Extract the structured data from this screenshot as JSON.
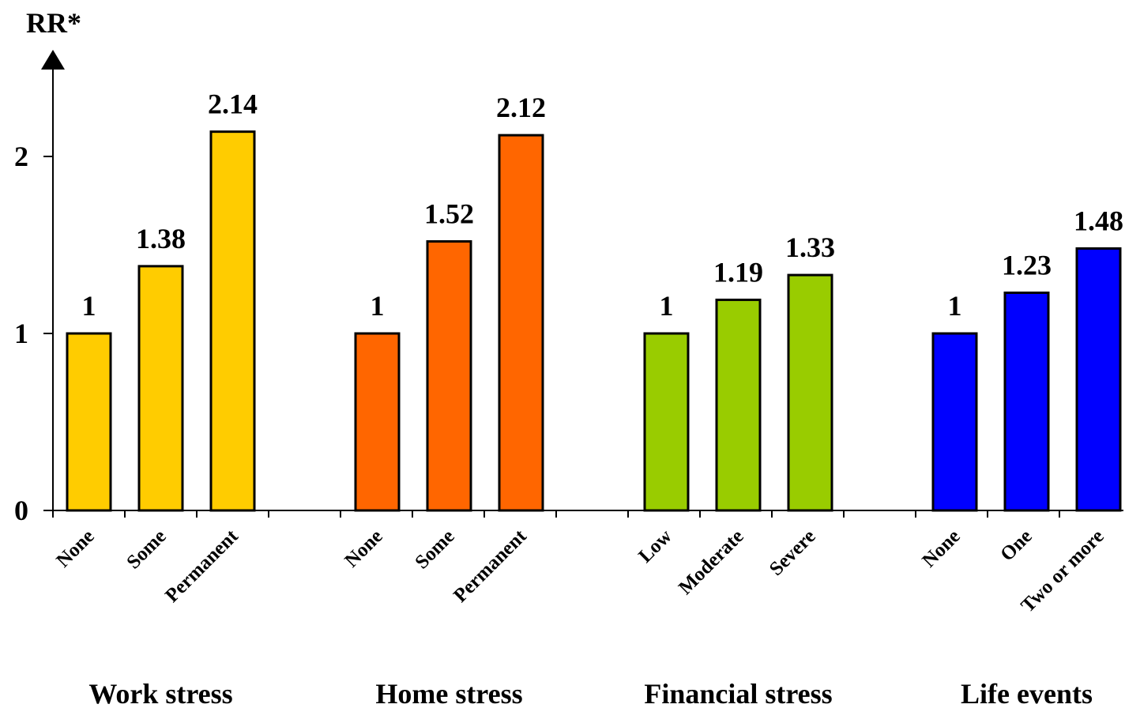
{
  "chart_data": {
    "type": "bar",
    "ylabel": "RR*",
    "ylim": [
      0,
      2.4
    ],
    "yticks": [
      0,
      1,
      2
    ],
    "grid": false,
    "legend": "none",
    "groups": [
      {
        "name": "Work stress",
        "color": "#FFCC00",
        "categories": [
          "None",
          "Some",
          "Permanent"
        ],
        "values": [
          1,
          1.38,
          2.14
        ],
        "labels": [
          "1",
          "1.38",
          "2.14"
        ]
      },
      {
        "name": "Home stress",
        "color": "#FF6600",
        "categories": [
          "None",
          "Some",
          "Permanent"
        ],
        "values": [
          1,
          1.52,
          2.12
        ],
        "labels": [
          "1",
          "1.52",
          "2.12"
        ]
      },
      {
        "name": "Financial stress",
        "color": "#99CC00",
        "categories": [
          "Low",
          "Moderate",
          "Severe"
        ],
        "values": [
          1,
          1.19,
          1.33
        ],
        "labels": [
          "1",
          "1.19",
          "1.33"
        ]
      },
      {
        "name": "Life events",
        "color": "#0000FF",
        "categories": [
          "None",
          "One",
          "Two or more"
        ],
        "values": [
          1,
          1.23,
          1.48
        ],
        "labels": [
          "1",
          "1.23",
          "1.48"
        ]
      }
    ]
  }
}
